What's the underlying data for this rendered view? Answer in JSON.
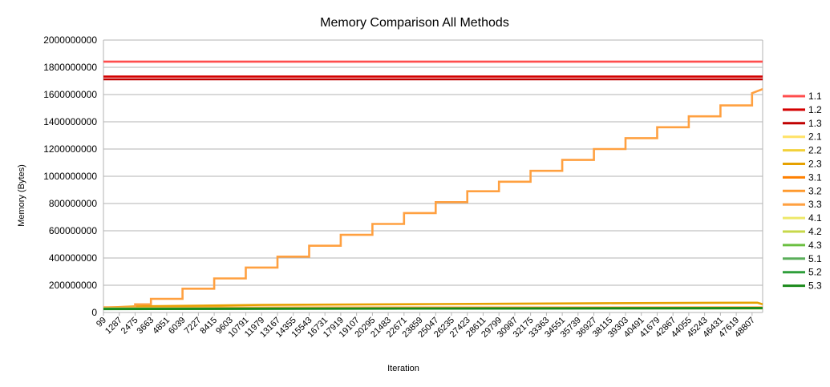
{
  "chart_data": {
    "type": "line",
    "title": "Memory Comparison All Methods",
    "xlabel": "Iteration",
    "ylabel": "Memory (Bytes)",
    "ylim": [
      0,
      2000000000
    ],
    "yticks": [
      0,
      200000000,
      400000000,
      600000000,
      800000000,
      1000000000,
      1200000000,
      1400000000,
      1600000000,
      1800000000,
      2000000000
    ],
    "xlim": [
      99,
      49600
    ],
    "xticks": [
      99,
      1287,
      2475,
      3663,
      4851,
      6039,
      7227,
      8415,
      9603,
      10791,
      11979,
      13167,
      14355,
      15543,
      16731,
      17919,
      19107,
      20295,
      21483,
      22671,
      23859,
      25047,
      26235,
      27423,
      28611,
      29799,
      30987,
      32175,
      33363,
      34551,
      35739,
      36927,
      38115,
      39303,
      40491,
      41679,
      42867,
      44055,
      45243,
      46431,
      47619,
      48807
    ],
    "grid": true,
    "legend_position": "right",
    "series": [
      {
        "name": "1.1",
        "color": "#ff4d4d",
        "x": [
          99,
          49600
        ],
        "values": [
          1842000000,
          1842000000
        ]
      },
      {
        "name": "1.2",
        "color": "#d40000",
        "x": [
          99,
          49600
        ],
        "values": [
          1732000000,
          1732000000
        ]
      },
      {
        "name": "1.3",
        "color": "#c00000",
        "x": [
          99,
          49600
        ],
        "values": [
          1712000000,
          1712000000
        ]
      },
      {
        "name": "2.1",
        "color": "#ffe266",
        "x": [
          99,
          49600
        ],
        "values": [
          32000000,
          33000000
        ]
      },
      {
        "name": "2.2",
        "color": "#f2d13a",
        "x": [
          99,
          49600
        ],
        "values": [
          33000000,
          34000000
        ]
      },
      {
        "name": "2.3",
        "color": "#e6a100",
        "x": [
          99,
          2475,
          12000,
          25000,
          38000,
          49200,
          49600
        ],
        "values": [
          35000000,
          45000000,
          55000000,
          62000000,
          68000000,
          72000000,
          60000000
        ]
      },
      {
        "name": "3.1",
        "color": "#ff8000",
        "x": [
          99,
          49600
        ],
        "values": [
          34000000,
          35000000
        ]
      },
      {
        "name": "3.2",
        "color": "#ff9a2e",
        "x": [
          99,
          49600
        ],
        "values": [
          36000000,
          37000000
        ]
      },
      {
        "name": "3.3",
        "color": "#ffa040",
        "x": [
          99,
          2475,
          3663,
          6039,
          8415,
          10791,
          13167,
          15543,
          17919,
          20295,
          22671,
          25047,
          27423,
          29799,
          32175,
          34551,
          36927,
          39303,
          41679,
          44055,
          46431,
          48807,
          49600
        ],
        "values": [
          38000000,
          60000000,
          100000000,
          175000000,
          250000000,
          330000000,
          410000000,
          490000000,
          570000000,
          650000000,
          730000000,
          810000000,
          890000000,
          960000000,
          1040000000,
          1120000000,
          1200000000,
          1280000000,
          1360000000,
          1440000000,
          1520000000,
          1610000000,
          1640000000
        ]
      },
      {
        "name": "4.1",
        "color": "#eee86a",
        "x": [
          99,
          49600
        ],
        "values": [
          30000000,
          31000000
        ]
      },
      {
        "name": "4.2",
        "color": "#c7d84a",
        "x": [
          99,
          49600
        ],
        "values": [
          29000000,
          30000000
        ]
      },
      {
        "name": "4.3",
        "color": "#6abf40",
        "x": [
          99,
          49600
        ],
        "values": [
          28000000,
          33000000
        ]
      },
      {
        "name": "5.1",
        "color": "#5aae5a",
        "x": [
          99,
          49600
        ],
        "values": [
          27000000,
          32000000
        ]
      },
      {
        "name": "5.2",
        "color": "#2e9e3a",
        "x": [
          99,
          49600
        ],
        "values": [
          26000000,
          31000000
        ]
      },
      {
        "name": "5.3",
        "color": "#1a8a1a",
        "x": [
          99,
          49600
        ],
        "values": [
          25000000,
          33000000
        ]
      }
    ]
  }
}
